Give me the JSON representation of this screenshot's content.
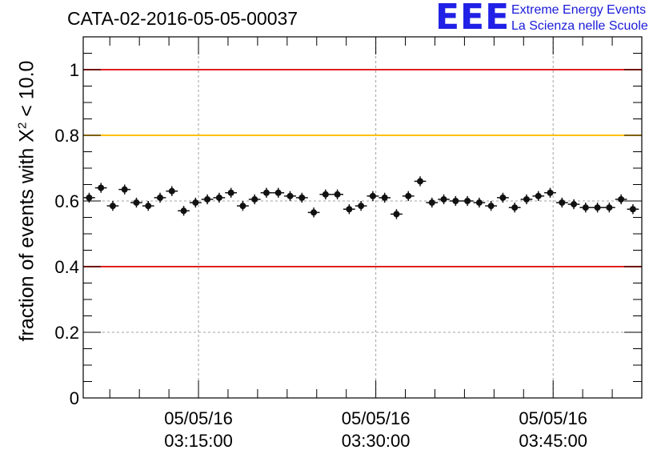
{
  "colors": {
    "axis": "#000000",
    "grid": "#a0a0a0",
    "red_line": "#e02020",
    "yellow_line": "#ffc000",
    "marker": "#111111",
    "logo": "#2020e6"
  },
  "header": {
    "title": "CATA-02-2016-05-05-00037"
  },
  "logo": {
    "mark": "EEE",
    "line1": "Extreme Energy Events",
    "line2": "La Scienza nelle Scuole"
  },
  "chart_data": {
    "type": "scatter",
    "title": "CATA-02-2016-05-05-00037",
    "ylabel_main": "fraction of events with X",
    "ylabel_sup": "2",
    "ylabel_tail": " < 10.0",
    "xlabel": "",
    "x_axis_type": "datetime",
    "xlim": [
      "2016-05-05T03:05:15",
      "2016-05-05T03:52:30"
    ],
    "ylim": [
      0,
      1.1
    ],
    "yticks": [
      0,
      0.2,
      0.4,
      0.6,
      0.8,
      1
    ],
    "ytick_labels": [
      "0",
      "0.2",
      "0.4",
      "0.6",
      "0.8",
      "1"
    ],
    "xticks": [
      "2016-05-05T03:15:00",
      "2016-05-05T03:30:00",
      "2016-05-05T03:45:00"
    ],
    "xtick_labels": [
      [
        "05/05/16",
        "03:15:00"
      ],
      [
        "05/05/16",
        "03:30:00"
      ],
      [
        "05/05/16",
        "03:45:00"
      ]
    ],
    "grid": true,
    "reference_lines": [
      {
        "y": 1.0,
        "color": "red"
      },
      {
        "y": 0.8,
        "color": "yellow"
      },
      {
        "y": 0.4,
        "color": "red"
      }
    ],
    "series": [
      {
        "x": [
          "2016-05-05T03:05:45",
          "2016-05-05T03:06:45",
          "2016-05-05T03:07:45",
          "2016-05-05T03:08:45",
          "2016-05-05T03:09:45",
          "2016-05-05T03:10:45",
          "2016-05-05T03:11:45",
          "2016-05-05T03:12:45",
          "2016-05-05T03:13:45",
          "2016-05-05T03:14:45",
          "2016-05-05T03:15:45",
          "2016-05-05T03:16:45",
          "2016-05-05T03:17:45",
          "2016-05-05T03:18:45",
          "2016-05-05T03:19:45",
          "2016-05-05T03:20:45",
          "2016-05-05T03:21:45",
          "2016-05-05T03:22:45",
          "2016-05-05T03:23:45",
          "2016-05-05T03:24:45",
          "2016-05-05T03:25:45",
          "2016-05-05T03:26:45",
          "2016-05-05T03:27:45",
          "2016-05-05T03:28:45",
          "2016-05-05T03:29:45",
          "2016-05-05T03:30:45",
          "2016-05-05T03:31:45",
          "2016-05-05T03:32:45",
          "2016-05-05T03:33:45",
          "2016-05-05T03:34:45",
          "2016-05-05T03:35:45",
          "2016-05-05T03:36:45",
          "2016-05-05T03:37:45",
          "2016-05-05T03:38:45",
          "2016-05-05T03:39:45",
          "2016-05-05T03:40:45",
          "2016-05-05T03:41:45",
          "2016-05-05T03:42:45",
          "2016-05-05T03:43:45",
          "2016-05-05T03:44:45",
          "2016-05-05T03:45:45",
          "2016-05-05T03:46:45",
          "2016-05-05T03:47:45",
          "2016-05-05T03:48:45",
          "2016-05-05T03:49:45",
          "2016-05-05T03:50:45",
          "2016-05-05T03:51:45"
        ],
        "y": [
          0.61,
          0.64,
          0.585,
          0.635,
          0.595,
          0.585,
          0.61,
          0.63,
          0.57,
          0.595,
          0.605,
          0.61,
          0.625,
          0.585,
          0.605,
          0.625,
          0.625,
          0.615,
          0.61,
          0.565,
          0.62,
          0.62,
          0.575,
          0.585,
          0.615,
          0.61,
          0.56,
          0.615,
          0.66,
          0.595,
          0.605,
          0.6,
          0.6,
          0.595,
          0.585,
          0.61,
          0.58,
          0.605,
          0.615,
          0.625,
          0.595,
          0.59,
          0.58,
          0.58,
          0.58,
          0.605,
          0.575
        ],
        "yerr": 0.015
      }
    ]
  }
}
